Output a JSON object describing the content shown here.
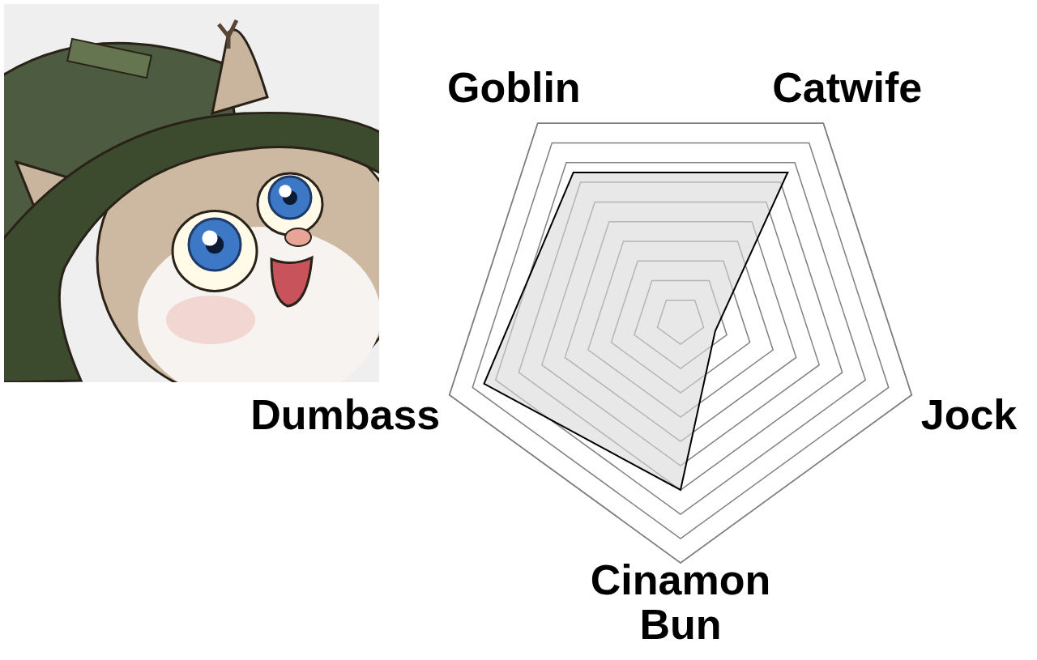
{
  "chart_data": {
    "type": "radar",
    "categories": [
      "Goblin",
      "Catwife",
      "Jock",
      "Cinamon Bun",
      "Dumbass"
    ],
    "values": [
      7.5,
      7.5,
      1.5,
      7,
      8.5
    ],
    "color": "#d9d9d9",
    "ylim": [
      0,
      10
    ],
    "yticks": [
      1,
      2,
      3,
      4,
      5,
      6,
      7,
      8,
      9,
      10
    ],
    "grid": true,
    "tick_labels": false
  }
}
